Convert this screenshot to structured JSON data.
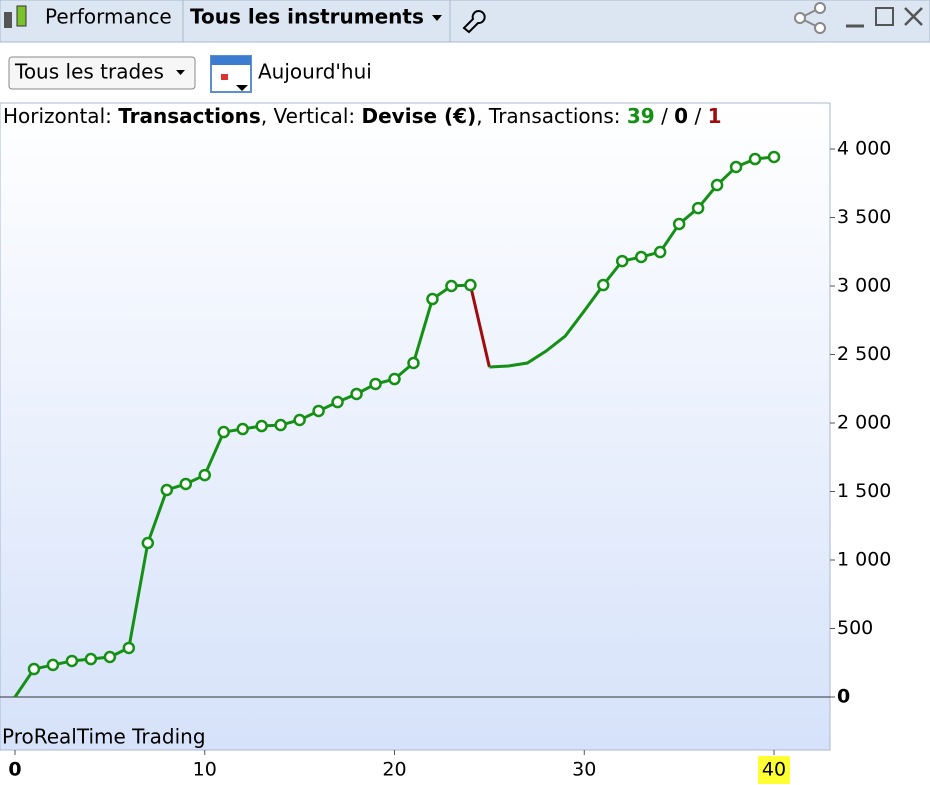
{
  "toolbar": {
    "performance": "Performance",
    "instruments": "Tous les instruments",
    "trades": "Tous les trades",
    "date": "Aujourd'hui"
  },
  "chart_data": {
    "type": "line",
    "info": {
      "h_label": "Horizontal:",
      "h_value": "Transactions",
      "v_label": ", Vertical:",
      "v_value": "Devise (€)",
      "t_label": ", Transactions:",
      "wins": "39",
      "slash": "/",
      "neutral": "0",
      "losses": "1"
    },
    "watermark": "ProRealTime Trading",
    "series": [
      {
        "color": "#149014",
        "x": [
          0,
          1,
          2,
          3,
          4,
          5,
          6,
          7,
          8,
          9,
          10,
          11,
          12,
          13,
          14,
          15,
          16,
          17,
          18,
          19,
          20,
          21,
          22,
          23,
          24
        ],
        "values": [
          0,
          204,
          234,
          263,
          277,
          292,
          358,
          1124,
          1511,
          1555,
          1620,
          1934,
          1956,
          1978,
          1985,
          2022,
          2088,
          2153,
          2212,
          2285,
          2321,
          2438,
          2905,
          3000,
          3007
        ],
        "markers": [
          false,
          true,
          true,
          true,
          true,
          true,
          true,
          true,
          true,
          true,
          true,
          true,
          true,
          true,
          true,
          true,
          true,
          true,
          true,
          true,
          true,
          true,
          true,
          true,
          true
        ]
      },
      {
        "color": "#a00c0c",
        "x": [
          24,
          25
        ],
        "values": [
          3007,
          2409
        ],
        "markers": [
          false,
          false
        ]
      },
      {
        "color": "#149014",
        "x": [
          25,
          26,
          27,
          28,
          29,
          30,
          31,
          32,
          33,
          34,
          35,
          36,
          37,
          38,
          39,
          40
        ],
        "values": [
          2409,
          2416,
          2438,
          2526,
          2635,
          2818,
          3007,
          3182,
          3212,
          3248,
          3453,
          3569,
          3737,
          3869,
          3927,
          3942
        ],
        "markers": [
          false,
          false,
          false,
          false,
          false,
          false,
          true,
          true,
          true,
          true,
          true,
          true,
          true,
          true,
          true,
          true
        ]
      }
    ],
    "xlim": [
      -0.79,
      42.95
    ],
    "xticks": [
      0,
      10,
      20,
      30,
      40
    ],
    "ylim": [
      -387,
      4336
    ],
    "yticks": [
      0,
      500,
      {
        "value": 1000,
        "label": "1 000"
      },
      {
        "value": 1500,
        "label": "1 500"
      },
      {
        "value": 2000,
        "label": "2 000"
      },
      {
        "value": 2500,
        "label": "2 500"
      },
      {
        "value": 3000,
        "label": "3 000"
      },
      {
        "value": 3500,
        "label": "3 500"
      },
      {
        "value": 4000,
        "label": "4 000"
      }
    ]
  }
}
